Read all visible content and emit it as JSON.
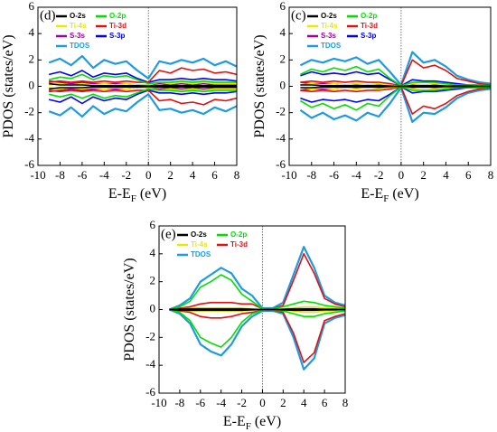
{
  "chart_data": [
    {
      "type": "line",
      "label": "(d)",
      "ylabel": "PDOS (states/eV)",
      "xlabel": {
        "main": "E-E",
        "sub": "F",
        "unit": "(eV)"
      },
      "xlim": [
        -10,
        8
      ],
      "ylim": [
        -6,
        6
      ],
      "xticks": [
        -10,
        -8,
        -6,
        -4,
        -2,
        0,
        2,
        4,
        6,
        8
      ],
      "yticks": [
        -6,
        -4,
        -2,
        0,
        2,
        4,
        6
      ],
      "fermi_level": 0,
      "x": [
        -9,
        -8,
        -7,
        -6,
        -5,
        -4,
        -3,
        -2,
        -1,
        0,
        1,
        2,
        3,
        4,
        5,
        6,
        7,
        8
      ],
      "series": [
        {
          "name": "O-2s",
          "color": "#000000",
          "values": [
            0.2,
            0.1,
            0.1,
            0.1,
            0.05,
            0.05,
            0.05,
            0.05,
            0.05,
            0.02,
            0.05,
            0.05,
            0.05,
            0.05,
            0.05,
            0.05,
            0.05,
            0.05
          ],
          "values_down": [
            -0.2,
            -0.1,
            -0.1,
            -0.1,
            -0.05,
            -0.05,
            -0.05,
            -0.05,
            -0.05,
            -0.02,
            -0.05,
            -0.05,
            -0.05,
            -0.05,
            -0.05,
            -0.05,
            -0.05,
            -0.05
          ]
        },
        {
          "name": "O-2p",
          "color": "#00e000",
          "values": [
            0.5,
            0.7,
            0.6,
            0.9,
            0.5,
            0.8,
            0.7,
            0.8,
            0.5,
            0.2,
            0.3,
            0.3,
            0.4,
            0.3,
            0.4,
            0.3,
            0.3,
            0.3
          ],
          "values_down": [
            -0.6,
            -0.8,
            -0.6,
            -0.9,
            -0.6,
            -0.9,
            -0.7,
            -0.8,
            -0.5,
            -0.2,
            -0.3,
            -0.3,
            -0.4,
            -0.3,
            -0.4,
            -0.3,
            -0.3,
            -0.3
          ]
        },
        {
          "name": "Ti-4s",
          "color": "#e8e800",
          "values": [
            0.1,
            0.2,
            0.1,
            0.2,
            0.1,
            0.2,
            0.1,
            0.2,
            0.1,
            0.1,
            0.3,
            0.2,
            0.3,
            0.2,
            0.3,
            0.2,
            0.2,
            0.2
          ],
          "values_down": [
            -0.1,
            -0.2,
            -0.1,
            -0.2,
            -0.1,
            -0.2,
            -0.1,
            -0.2,
            -0.1,
            -0.1,
            -0.3,
            -0.2,
            -0.3,
            -0.2,
            -0.3,
            -0.2,
            -0.2,
            -0.2
          ]
        },
        {
          "name": "Ti-3d",
          "color": "#e01010",
          "values": [
            0.3,
            0.4,
            0.3,
            0.4,
            0.3,
            0.4,
            0.3,
            0.4,
            0.3,
            0.3,
            1.2,
            1.0,
            1.4,
            1.2,
            1.3,
            1.0,
            1.1,
            0.9
          ],
          "values_down": [
            -0.3,
            -0.4,
            -0.3,
            -0.4,
            -0.3,
            -0.4,
            -0.3,
            -0.4,
            -0.3,
            -0.3,
            -1.1,
            -1.0,
            -1.3,
            -1.2,
            -1.4,
            -1.0,
            -1.1,
            -0.9
          ]
        },
        {
          "name": "S-3s",
          "color": "#a000a0",
          "values": [
            0.4,
            0.3,
            0.2,
            0.3,
            0.2,
            0.2,
            0.2,
            0.2,
            0.1,
            0.1,
            0.2,
            0.1,
            0.2,
            0.1,
            0.2,
            0.1,
            0.1,
            0.1
          ],
          "values_down": [
            -0.4,
            -0.3,
            -0.2,
            -0.3,
            -0.2,
            -0.2,
            -0.2,
            -0.2,
            -0.1,
            -0.1,
            -0.2,
            -0.1,
            -0.2,
            -0.1,
            -0.2,
            -0.1,
            -0.1,
            -0.1
          ]
        },
        {
          "name": "S-3p",
          "color": "#0000ff",
          "values": [
            0.9,
            1.1,
            0.8,
            1.2,
            0.7,
            1.0,
            0.9,
            1.0,
            0.6,
            0.3,
            0.5,
            0.5,
            0.6,
            0.5,
            0.6,
            0.5,
            0.5,
            0.4
          ],
          "values_down": [
            -1.0,
            -1.2,
            -0.8,
            -1.3,
            -0.8,
            -1.1,
            -0.9,
            -1.0,
            -0.6,
            -0.3,
            -0.5,
            -0.5,
            -0.6,
            -0.5,
            -0.6,
            -0.5,
            -0.5,
            -0.4
          ]
        },
        {
          "name": "TDOS",
          "color": "#1e9be0",
          "values": [
            1.8,
            2.1,
            1.6,
            2.3,
            1.4,
            2.0,
            1.7,
            1.9,
            1.2,
            0.6,
            1.9,
            1.7,
            2.0,
            1.8,
            2.1,
            1.6,
            1.9,
            1.5
          ],
          "values_down": [
            -1.9,
            -2.2,
            -1.6,
            -2.3,
            -1.5,
            -2.1,
            -1.7,
            -1.9,
            -1.2,
            -0.6,
            -1.8,
            -1.7,
            -2.0,
            -1.8,
            -2.1,
            -1.6,
            -1.9,
            -1.5
          ]
        }
      ]
    },
    {
      "type": "line",
      "label": "(c)",
      "ylabel": "PDOS (states/eV)",
      "xlabel": {
        "main": "E-E",
        "sub": "F",
        "unit": "(eV)"
      },
      "xlim": [
        -10,
        8
      ],
      "ylim": [
        -6,
        6
      ],
      "xticks": [
        -10,
        -8,
        -6,
        -4,
        -2,
        0,
        2,
        4,
        6,
        8
      ],
      "yticks": [
        -6,
        -4,
        -2,
        0,
        2,
        4,
        6
      ],
      "fermi_level": 0,
      "x": [
        -9,
        -8,
        -7,
        -6,
        -5,
        -4,
        -3,
        -2,
        -1,
        0,
        1,
        2,
        3,
        4,
        5,
        6,
        7,
        8
      ],
      "series": [
        {
          "name": "O-2s",
          "color": "#000000",
          "values": [
            0.1,
            0.1,
            0.05,
            0.05,
            0.05,
            0.05,
            0.05,
            0.05,
            0.02,
            0,
            0.05,
            0.05,
            0.05,
            0.02,
            0.02,
            0.02,
            0,
            0
          ],
          "values_down": [
            -0.1,
            -0.1,
            -0.05,
            -0.05,
            -0.05,
            -0.05,
            -0.05,
            -0.05,
            -0.02,
            0,
            -0.05,
            -0.05,
            -0.05,
            -0.02,
            -0.02,
            -0.02,
            0,
            0
          ]
        },
        {
          "name": "O-2p",
          "color": "#00e000",
          "values": [
            0.9,
            1.3,
            1.1,
            1.4,
            1.2,
            1.5,
            1.1,
            1.3,
            0.6,
            0.05,
            0.3,
            0.3,
            0.3,
            0.2,
            0.1,
            0.1,
            0.1,
            0.05
          ],
          "values_down": [
            -1.1,
            -1.6,
            -1.3,
            -1.7,
            -1.4,
            -1.8,
            -1.3,
            -1.5,
            -0.7,
            -0.05,
            -0.3,
            -0.3,
            -0.3,
            -0.2,
            -0.1,
            -0.1,
            -0.1,
            -0.05
          ]
        },
        {
          "name": "Ti-4s",
          "color": "#e8e800",
          "values": [
            0.1,
            0.2,
            0.1,
            0.2,
            0.1,
            0.2,
            0.1,
            0.2,
            0.1,
            0,
            0.2,
            0.1,
            0.2,
            0.1,
            0.1,
            0.05,
            0,
            0
          ],
          "values_down": [
            -0.1,
            -0.2,
            -0.1,
            -0.2,
            -0.1,
            -0.2,
            -0.1,
            -0.2,
            -0.1,
            0,
            -0.2,
            -0.1,
            -0.2,
            -0.1,
            -0.1,
            -0.05,
            0,
            0
          ]
        },
        {
          "name": "Ti-3d",
          "color": "#e01010",
          "values": [
            0.3,
            0.4,
            0.3,
            0.4,
            0.3,
            0.4,
            0.3,
            0.3,
            0.2,
            0.05,
            2.0,
            1.4,
            1.6,
            1.2,
            0.6,
            0.4,
            0.2,
            0.1
          ],
          "values_down": [
            -0.3,
            -0.4,
            -0.3,
            -0.4,
            -0.3,
            -0.4,
            -0.3,
            -0.3,
            -0.2,
            -0.05,
            -2.1,
            -1.5,
            -1.7,
            -1.3,
            -0.7,
            -0.4,
            -0.2,
            -0.1
          ]
        },
        {
          "name": "S-3s",
          "color": "#a000a0",
          "values": [
            0.3,
            0.2,
            0.2,
            0.2,
            0.1,
            0.1,
            0.1,
            0.1,
            0.1,
            0,
            0.1,
            0.1,
            0.1,
            0.1,
            0.05,
            0.05,
            0,
            0
          ],
          "values_down": [
            -0.3,
            -0.2,
            -0.2,
            -0.2,
            -0.1,
            -0.1,
            -0.1,
            -0.1,
            -0.1,
            0,
            -0.1,
            -0.1,
            -0.1,
            -0.1,
            -0.05,
            -0.05,
            0,
            0
          ]
        },
        {
          "name": "S-3p",
          "color": "#0000ff",
          "values": [
            0.8,
            1.1,
            0.9,
            1.0,
            0.9,
            1.1,
            0.9,
            1.0,
            0.5,
            0.05,
            0.5,
            0.4,
            0.4,
            0.3,
            0.2,
            0.1,
            0.1,
            0.05
          ],
          "values_down": [
            -0.9,
            -1.2,
            -1.0,
            -1.1,
            -1.0,
            -1.2,
            -1.0,
            -1.1,
            -0.6,
            -0.05,
            -0.5,
            -0.4,
            -0.4,
            -0.3,
            -0.2,
            -0.1,
            -0.1,
            -0.05
          ]
        },
        {
          "name": "TDOS",
          "color": "#1e9be0",
          "values": [
            1.6,
            2.0,
            1.8,
            2.1,
            1.9,
            2.2,
            1.7,
            2.0,
            1.1,
            0.1,
            2.6,
            1.8,
            2.0,
            1.5,
            0.8,
            0.5,
            0.3,
            0.2
          ],
          "values_down": [
            -1.8,
            -2.4,
            -2.0,
            -2.5,
            -2.2,
            -2.6,
            -2.0,
            -2.3,
            -1.3,
            -0.1,
            -2.7,
            -2.0,
            -2.1,
            -1.6,
            -0.9,
            -0.5,
            -0.3,
            -0.2
          ]
        }
      ]
    },
    {
      "type": "line",
      "label": "(e)",
      "ylabel": "PDOS (states/eV)",
      "xlabel": {
        "main": "E-E",
        "sub": "F",
        "unit": "(eV)"
      },
      "xlim": [
        -10,
        8
      ],
      "ylim": [
        -6,
        6
      ],
      "xticks": [
        -10,
        -8,
        -6,
        -4,
        -2,
        0,
        2,
        4,
        6,
        8
      ],
      "yticks": [
        -6,
        -4,
        -2,
        0,
        2,
        4,
        6
      ],
      "fermi_level": 0,
      "x": [
        -9,
        -8,
        -7,
        -6,
        -5,
        -4,
        -3,
        -2,
        -1,
        0,
        1,
        2,
        3,
        4,
        5,
        6,
        7,
        8
      ],
      "series": [
        {
          "name": "O-2s",
          "color": "#000000",
          "values": [
            0,
            0.05,
            0.05,
            0.05,
            0.05,
            0.05,
            0.05,
            0.05,
            0.02,
            0,
            0,
            0.02,
            0.05,
            0.05,
            0.05,
            0.02,
            0.02,
            0
          ],
          "values_down": [
            0,
            -0.05,
            -0.05,
            -0.05,
            -0.05,
            -0.05,
            -0.05,
            -0.05,
            -0.02,
            0,
            0,
            -0.02,
            -0.05,
            -0.05,
            -0.05,
            -0.02,
            -0.02,
            0
          ]
        },
        {
          "name": "O-2p",
          "color": "#00e000",
          "values": [
            0,
            0.2,
            0.6,
            1.6,
            2.0,
            2.5,
            2.1,
            1.1,
            0.6,
            0.05,
            0.05,
            0.2,
            0.4,
            0.6,
            0.5,
            0.3,
            0.2,
            0.1
          ],
          "values_down": [
            0,
            -0.2,
            -0.8,
            -2.0,
            -2.4,
            -2.7,
            -2.0,
            -0.9,
            -0.3,
            -0.05,
            -0.05,
            -0.1,
            -0.3,
            -0.5,
            -0.5,
            -0.3,
            -0.2,
            -0.1
          ]
        },
        {
          "name": "Ti-4s",
          "color": "#e8e800",
          "values": [
            0,
            0.05,
            0.1,
            0.1,
            0.1,
            0.1,
            0.1,
            0.1,
            0.05,
            0,
            0,
            0.05,
            0.1,
            0.2,
            0.2,
            0.1,
            0.1,
            0.05
          ],
          "values_down": [
            0,
            -0.05,
            -0.1,
            -0.1,
            -0.1,
            -0.1,
            -0.1,
            -0.1,
            -0.05,
            0,
            0,
            -0.05,
            -0.1,
            -0.2,
            -0.2,
            -0.1,
            -0.1,
            -0.05
          ]
        },
        {
          "name": "Ti-3d",
          "color": "#e01010",
          "values": [
            0,
            0.1,
            0.2,
            0.4,
            0.5,
            0.5,
            0.5,
            0.4,
            0.4,
            0.05,
            0.05,
            0.3,
            2.1,
            4.0,
            2.6,
            0.8,
            0.4,
            0.2
          ],
          "values_down": [
            0,
            -0.1,
            -0.2,
            -0.5,
            -0.6,
            -0.6,
            -0.5,
            -0.3,
            -0.2,
            -0.05,
            -0.05,
            -0.2,
            -1.7,
            -3.8,
            -3.1,
            -0.8,
            -0.5,
            -0.3
          ]
        },
        {
          "name": "TDOS",
          "color": "#1e9be0",
          "values": [
            0,
            0.3,
            0.8,
            2.0,
            2.5,
            3.0,
            2.6,
            1.5,
            1.0,
            0.1,
            0.1,
            0.5,
            2.5,
            4.5,
            3.0,
            1.0,
            0.5,
            0.3
          ],
          "values_down": [
            0,
            -0.3,
            -1.0,
            -2.5,
            -3.0,
            -3.3,
            -2.5,
            -1.2,
            -0.5,
            -0.1,
            -0.1,
            -0.3,
            -2.0,
            -4.3,
            -3.5,
            -1.0,
            -0.6,
            -0.4
          ]
        }
      ]
    }
  ]
}
